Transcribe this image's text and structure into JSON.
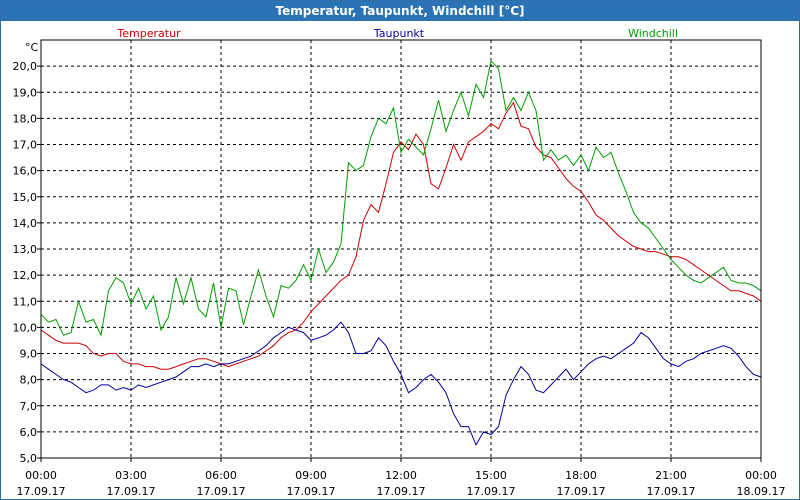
{
  "window": {
    "title": "Temperatur, Taupunkt, Windchill [°C]"
  },
  "colors": {
    "titlebar": "#2a74b5",
    "frame": "#2f6fa8",
    "grid": "#000000"
  },
  "chart_data": {
    "type": "line",
    "title": "Temperatur, Taupunkt, Windchill [°C]",
    "ylabel": "°C",
    "xlabel": "",
    "ylim": [
      5.0,
      21.0
    ],
    "yticks": [
      "5,0",
      "6,0",
      "7,0",
      "8,0",
      "9,0",
      "10,0",
      "11,0",
      "12,0",
      "13,0",
      "14,0",
      "15,0",
      "16,0",
      "17,0",
      "18,0",
      "19,0",
      "20,0"
    ],
    "xlim_hours": [
      0,
      24
    ],
    "xticks": [
      {
        "time": "00:00",
        "date": "17.09.17"
      },
      {
        "time": "03:00",
        "date": "17.09.17"
      },
      {
        "time": "06:00",
        "date": "17.09.17"
      },
      {
        "time": "09:00",
        "date": "17.09.17"
      },
      {
        "time": "12:00",
        "date": "17.09.17"
      },
      {
        "time": "15:00",
        "date": "17.09.17"
      },
      {
        "time": "18:00",
        "date": "17.09.17"
      },
      {
        "time": "21:00",
        "date": "17.09.17"
      },
      {
        "time": "00:00",
        "date": "18.09.17"
      }
    ],
    "grid": true,
    "legend_position": "top",
    "series": [
      {
        "name": "Temperatur",
        "color": "#cc0000",
        "x": [
          0,
          0.25,
          0.5,
          0.75,
          1,
          1.25,
          1.5,
          1.75,
          2,
          2.25,
          2.5,
          2.75,
          3,
          3.25,
          3.5,
          3.75,
          4,
          4.25,
          4.5,
          4.75,
          5,
          5.25,
          5.5,
          5.75,
          6,
          6.25,
          6.5,
          6.75,
          7,
          7.25,
          7.5,
          7.75,
          8,
          8.25,
          8.5,
          8.75,
          9,
          9.25,
          9.5,
          9.75,
          10,
          10.25,
          10.5,
          10.75,
          11,
          11.25,
          11.5,
          11.75,
          12,
          12.25,
          12.5,
          12.75,
          13,
          13.25,
          13.5,
          13.75,
          14,
          14.25,
          14.5,
          14.75,
          15,
          15.25,
          15.5,
          15.75,
          16,
          16.25,
          16.5,
          16.75,
          17,
          17.25,
          17.5,
          17.75,
          18,
          18.25,
          18.5,
          18.75,
          19,
          19.25,
          19.5,
          19.75,
          20,
          20.25,
          20.5,
          20.75,
          21,
          21.25,
          21.5,
          21.75,
          22,
          22.25,
          22.5,
          22.75,
          23,
          23.25,
          23.5,
          23.75,
          24
        ],
        "values": [
          9.9,
          9.7,
          9.5,
          9.4,
          9.4,
          9.4,
          9.3,
          9.0,
          8.9,
          9.0,
          9.0,
          8.7,
          8.6,
          8.6,
          8.5,
          8.5,
          8.4,
          8.4,
          8.5,
          8.6,
          8.7,
          8.8,
          8.8,
          8.7,
          8.6,
          8.5,
          8.6,
          8.7,
          8.8,
          8.9,
          9.1,
          9.3,
          9.6,
          9.8,
          9.9,
          10.2,
          10.6,
          10.9,
          11.2,
          11.5,
          11.8,
          12.0,
          12.7,
          14.1,
          14.7,
          14.4,
          15.5,
          16.7,
          17.1,
          16.8,
          17.4,
          17.0,
          15.5,
          15.3,
          16.1,
          17.0,
          16.4,
          17.1,
          17.3,
          17.5,
          17.8,
          17.6,
          18.2,
          18.6,
          17.7,
          17.6,
          16.9,
          16.6,
          16.5,
          16.1,
          15.7,
          15.4,
          15.2,
          14.8,
          14.3,
          14.1,
          13.8,
          13.5,
          13.3,
          13.1,
          13.0,
          12.9,
          12.9,
          12.8,
          12.7,
          12.7,
          12.6,
          12.4,
          12.2,
          12.0,
          11.8,
          11.6,
          11.4,
          11.4,
          11.3,
          11.2,
          11.0
        ]
      },
      {
        "name": "Taupunkt",
        "color": "#00009c",
        "x": [
          0,
          0.25,
          0.5,
          0.75,
          1,
          1.25,
          1.5,
          1.75,
          2,
          2.25,
          2.5,
          2.75,
          3,
          3.25,
          3.5,
          3.75,
          4,
          4.25,
          4.5,
          4.75,
          5,
          5.25,
          5.5,
          5.75,
          6,
          6.25,
          6.5,
          6.75,
          7,
          7.25,
          7.5,
          7.75,
          8,
          8.25,
          8.5,
          8.75,
          9,
          9.25,
          9.5,
          9.75,
          10,
          10.25,
          10.5,
          10.75,
          11,
          11.25,
          11.5,
          11.75,
          12,
          12.25,
          12.5,
          12.75,
          13,
          13.25,
          13.5,
          13.75,
          14,
          14.25,
          14.5,
          14.75,
          15,
          15.25,
          15.5,
          15.75,
          16,
          16.25,
          16.5,
          16.75,
          17,
          17.25,
          17.5,
          17.75,
          18,
          18.25,
          18.5,
          18.75,
          19,
          19.25,
          19.5,
          19.75,
          20,
          20.25,
          20.5,
          20.75,
          21,
          21.25,
          21.5,
          21.75,
          22,
          22.25,
          22.5,
          22.75,
          23,
          23.25,
          23.5,
          23.75,
          24
        ],
        "values": [
          8.6,
          8.4,
          8.2,
          8.0,
          7.9,
          7.7,
          7.5,
          7.6,
          7.8,
          7.8,
          7.6,
          7.7,
          7.6,
          7.8,
          7.7,
          7.8,
          7.9,
          8.0,
          8.1,
          8.3,
          8.5,
          8.5,
          8.6,
          8.5,
          8.6,
          8.6,
          8.7,
          8.8,
          8.9,
          9.1,
          9.3,
          9.6,
          9.8,
          10.0,
          9.9,
          9.8,
          9.5,
          9.6,
          9.7,
          9.9,
          10.2,
          9.8,
          9.0,
          9.0,
          9.1,
          9.6,
          9.3,
          8.7,
          8.2,
          7.5,
          7.7,
          8.0,
          8.2,
          7.9,
          7.5,
          6.7,
          6.2,
          6.2,
          5.5,
          6.0,
          5.9,
          6.2,
          7.4,
          8.0,
          8.5,
          8.2,
          7.6,
          7.5,
          7.8,
          8.1,
          8.4,
          8.0,
          8.3,
          8.6,
          8.8,
          8.9,
          8.8,
          9.0,
          9.2,
          9.4,
          9.8,
          9.6,
          9.2,
          8.8,
          8.6,
          8.5,
          8.7,
          8.8,
          9.0,
          9.1,
          9.2,
          9.3,
          9.2,
          8.9,
          8.5,
          8.2,
          8.1
        ]
      },
      {
        "name": "Windchill",
        "color": "#00a000",
        "x": [
          0,
          0.25,
          0.5,
          0.75,
          1,
          1.25,
          1.5,
          1.75,
          2,
          2.25,
          2.5,
          2.75,
          3,
          3.25,
          3.5,
          3.75,
          4,
          4.25,
          4.5,
          4.75,
          5,
          5.25,
          5.5,
          5.75,
          6,
          6.25,
          6.5,
          6.75,
          7,
          7.25,
          7.5,
          7.75,
          8,
          8.25,
          8.5,
          8.75,
          9,
          9.25,
          9.5,
          9.75,
          10,
          10.25,
          10.5,
          10.75,
          11,
          11.25,
          11.5,
          11.75,
          12,
          12.25,
          12.5,
          12.75,
          13,
          13.25,
          13.5,
          13.75,
          14,
          14.25,
          14.5,
          14.75,
          15,
          15.25,
          15.5,
          15.75,
          16,
          16.25,
          16.5,
          16.75,
          17,
          17.25,
          17.5,
          17.75,
          18,
          18.25,
          18.5,
          18.75,
          19,
          19.25,
          19.5,
          19.75,
          20,
          20.25,
          20.5,
          20.75,
          21,
          21.25,
          21.5,
          21.75,
          22,
          22.25,
          22.5,
          22.75,
          23,
          23.25,
          23.5,
          23.75,
          24
        ],
        "values": [
          10.5,
          10.2,
          10.3,
          9.7,
          9.8,
          11.0,
          10.2,
          10.3,
          9.7,
          11.4,
          11.9,
          11.7,
          10.9,
          11.5,
          10.7,
          11.2,
          9.9,
          10.4,
          11.9,
          10.9,
          11.9,
          10.7,
          10.4,
          11.7,
          10.0,
          11.5,
          11.4,
          10.1,
          11.2,
          12.2,
          11.2,
          10.4,
          11.6,
          11.5,
          11.8,
          12.4,
          11.8,
          13.0,
          12.1,
          12.5,
          13.2,
          16.3,
          16.0,
          16.2,
          17.3,
          18.0,
          17.8,
          18.4,
          16.7,
          17.2,
          16.9,
          16.6,
          17.6,
          18.7,
          17.5,
          18.3,
          19.0,
          18.1,
          19.3,
          18.8,
          20.2,
          19.9,
          18.3,
          18.8,
          18.3,
          19.0,
          18.3,
          16.4,
          16.8,
          16.4,
          16.6,
          16.2,
          16.6,
          16.0,
          16.9,
          16.5,
          16.7,
          15.9,
          15.2,
          14.4,
          14.0,
          13.8,
          13.4,
          13.0,
          12.6,
          12.3,
          12.0,
          11.8,
          11.7,
          11.9,
          12.1,
          12.3,
          11.8,
          11.7,
          11.7,
          11.6,
          11.4
        ]
      }
    ]
  }
}
